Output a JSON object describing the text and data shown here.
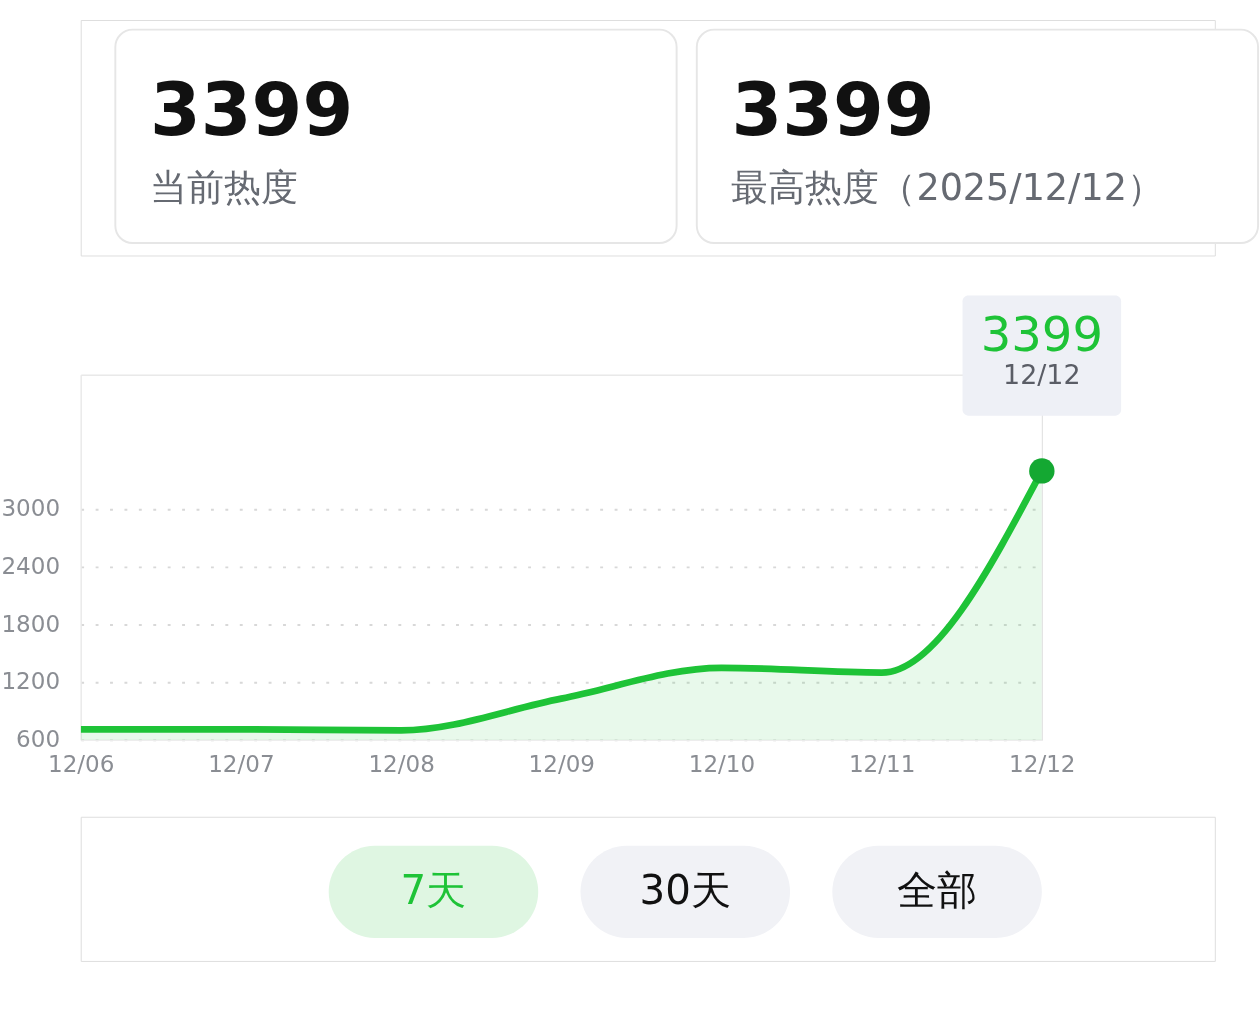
{
  "chart_data": {
    "type": "area",
    "categories": [
      "12/06",
      "12/07",
      "12/08",
      "12/09",
      "12/10",
      "12/11",
      "12/12"
    ],
    "series": [
      {
        "color": "#1ec337",
        "values": [
          710,
          710,
          700,
          1030,
          1350,
          1300,
          3399
        ]
      },
      {
        "type": "scatter",
        "color": "#14a832",
        "x": [
          "12/12"
        ],
        "values": [
          3399
        ]
      }
    ],
    "ylim": [
      600,
      4400
    ],
    "yticks": [
      600,
      1200,
      1800,
      2400,
      3000
    ],
    "grid": "y",
    "line_style": "solid",
    "legend": false,
    "annotations": [
      {
        "text": "3399",
        "x": "12/12",
        "y": 3399
      },
      "12/12",
      "3399",
      "当前热度",
      "3399",
      "最高热度（2025/12/12）",
      "7天",
      "30天",
      "全部"
    ]
  }
}
